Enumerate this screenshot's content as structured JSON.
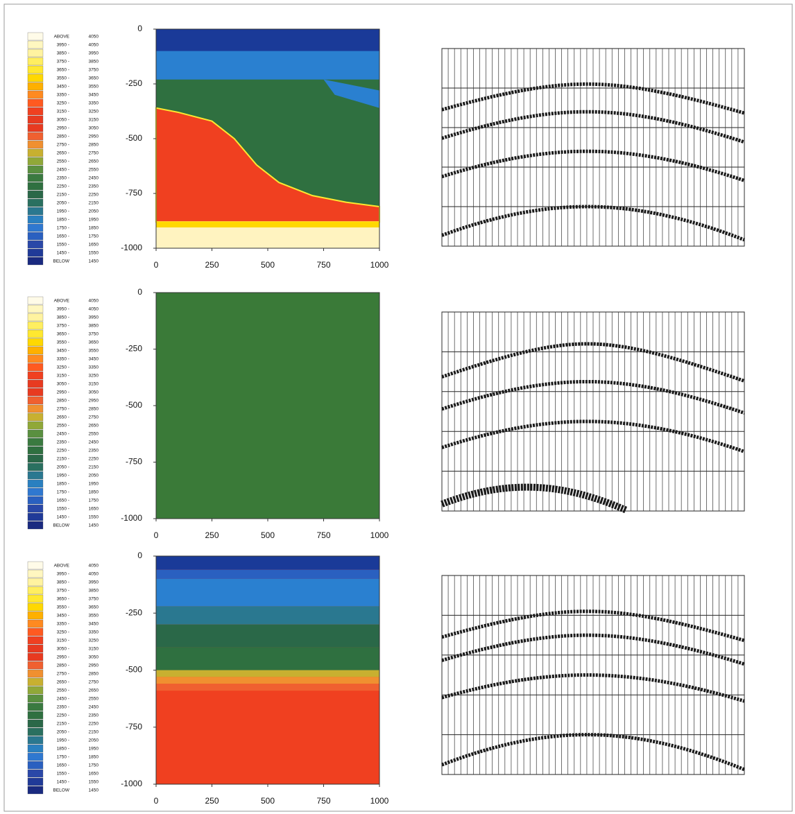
{
  "chart_data": [
    {
      "type": "heatmap",
      "xlim": [
        0,
        1000
      ],
      "ylim": [
        -1000,
        0
      ],
      "xticks": [
        0,
        250,
        500,
        750,
        1000
      ],
      "yticks": [
        0,
        -250,
        -500,
        -750,
        -1000
      ],
      "legend": {
        "from": [
          "ABOVE",
          "3950 -",
          "3850 -",
          "3750 -",
          "3650 -",
          "3550 -",
          "3450 -",
          "3350 -",
          "3250 -",
          "3150 -",
          "3050 -",
          "2950 -",
          "2850 -",
          "2750 -",
          "2650 -",
          "2550 -",
          "2450 -",
          "2350 -",
          "2250 -",
          "2150 -",
          "2050 -",
          "1950 -",
          "1850 -",
          "1750 -",
          "1650 -",
          "1550 -",
          "1450 -",
          "BELOW"
        ],
        "to": [
          "4050",
          "4050",
          "3950",
          "3850",
          "3750",
          "3650",
          "3550",
          "3450",
          "3350",
          "3250",
          "3150",
          "3050",
          "2950",
          "2850",
          "2750",
          "2650",
          "2550",
          "2450",
          "2350",
          "2250",
          "2150",
          "2050",
          "1950",
          "1850",
          "1750",
          "1650",
          "1550",
          "1450"
        ],
        "colors": [
          "#fffbe8",
          "#fff7c0",
          "#fff3a0",
          "#ffee60",
          "#ffe830",
          "#ffd800",
          "#ffb000",
          "#ff8a20",
          "#ff5a20",
          "#f04020",
          "#e83a20",
          "#e83a20",
          "#f06030",
          "#f09030",
          "#c8b030",
          "#90a838",
          "#5a9040",
          "#3a7a40",
          "#2f7040",
          "#2a6848",
          "#2a7060",
          "#2a7890",
          "#2a80c0",
          "#2f78d0",
          "#2a60c0",
          "#2a48a8",
          "#203a98",
          "#1a2a80"
        ]
      }
    },
    {
      "type": "heatmap",
      "xlim": [
        0,
        1000
      ],
      "ylim": [
        -1000,
        0
      ],
      "xticks": [
        0,
        250,
        500,
        750,
        1000
      ],
      "yticks": [
        0,
        -250,
        -500,
        -750,
        -1000
      ],
      "legend": {
        "from": [
          "ABOVE",
          "3950 -",
          "3850 -",
          "3750 -",
          "3650 -",
          "3550 -",
          "3450 -",
          "3350 -",
          "3250 -",
          "3150 -",
          "3050 -",
          "2950 -",
          "2850 -",
          "2750 -",
          "2650 -",
          "2550 -",
          "2450 -",
          "2350 -",
          "2250 -",
          "2150 -",
          "2050 -",
          "1950 -",
          "1850 -",
          "1750 -",
          "1650 -",
          "1550 -",
          "1450 -",
          "BELOW"
        ],
        "to": [
          "4050",
          "4050",
          "3950",
          "3850",
          "3750",
          "3650",
          "3550",
          "3450",
          "3350",
          "3250",
          "3150",
          "3050",
          "2950",
          "2850",
          "2750",
          "2650",
          "2550",
          "2450",
          "2350",
          "2250",
          "2150",
          "2050",
          "1950",
          "1850",
          "1750",
          "1650",
          "1550",
          "1450"
        ],
        "colors": [
          "#fffbe8",
          "#fff7c0",
          "#fff3a0",
          "#ffee60",
          "#ffe830",
          "#ffd800",
          "#ffb000",
          "#ff8a20",
          "#ff5a20",
          "#f04020",
          "#e83a20",
          "#e83a20",
          "#f06030",
          "#f09030",
          "#c8b030",
          "#90a838",
          "#5a9040",
          "#3a7a40",
          "#2f7040",
          "#2a6848",
          "#2a7060",
          "#2a7890",
          "#2a80c0",
          "#2f78d0",
          "#2a60c0",
          "#2a48a8",
          "#203a98",
          "#1a2a80"
        ]
      }
    },
    {
      "type": "heatmap",
      "xlim": [
        0,
        1000
      ],
      "ylim": [
        -1000,
        0
      ],
      "xticks": [
        0,
        250,
        500,
        750,
        1000
      ],
      "yticks": [
        0,
        -250,
        -500,
        -750,
        -1000
      ],
      "legend": {
        "from": [
          "ABOVE",
          "3950 -",
          "3850 -",
          "3750 -",
          "3650 -",
          "3550 -",
          "3450 -",
          "3350 -",
          "3250 -",
          "3150 -",
          "3050 -",
          "2950 -",
          "2850 -",
          "2750 -",
          "2650 -",
          "2550 -",
          "2450 -",
          "2350 -",
          "2250 -",
          "2150 -",
          "2050 -",
          "1950 -",
          "1850 -",
          "1750 -",
          "1650 -",
          "1550 -",
          "1450 -",
          "BELOW"
        ],
        "to": [
          "4050",
          "4050",
          "3950",
          "3850",
          "3750",
          "3650",
          "3550",
          "3450",
          "3350",
          "3250",
          "3150",
          "3050",
          "2950",
          "2850",
          "2750",
          "2650",
          "2550",
          "2450",
          "2350",
          "2250",
          "2150",
          "2050",
          "1950",
          "1850",
          "1750",
          "1650",
          "1550",
          "1450"
        ],
        "colors": [
          "#fffbe8",
          "#fff7c0",
          "#fff3a0",
          "#ffee60",
          "#ffe830",
          "#ffd800",
          "#ffb000",
          "#ff8a20",
          "#ff5a20",
          "#f04020",
          "#e83a20",
          "#e83a20",
          "#f06030",
          "#f09030",
          "#c8b030",
          "#90a838",
          "#5a9040",
          "#3a7a40",
          "#2f7040",
          "#2a6848",
          "#2a7060",
          "#2a7890",
          "#2a80c0",
          "#2f78d0",
          "#2a60c0",
          "#2a48a8",
          "#203a98",
          "#1a2a80"
        ]
      }
    }
  ]
}
